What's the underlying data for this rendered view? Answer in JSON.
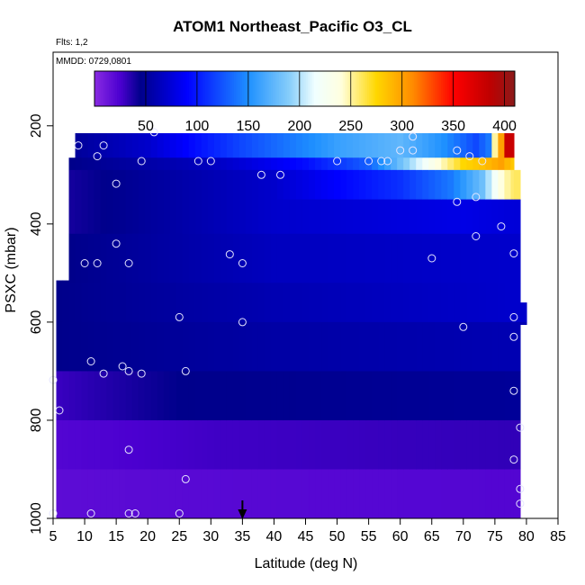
{
  "title": "ATOM1 Northeast_Pacific O3_CL",
  "flights_label": "Flts: 1,2",
  "date_label": "MMDD: 0729,0801",
  "chart_data": {
    "type": "heatmap",
    "xlabel": "Latitude (deg N)",
    "ylabel": "PSXC (mbar)",
    "xlim": [
      5,
      85
    ],
    "ylim": [
      1000,
      50
    ],
    "x_ticks": [
      5,
      10,
      15,
      20,
      25,
      30,
      35,
      40,
      45,
      50,
      55,
      60,
      65,
      70,
      75,
      80,
      85
    ],
    "y_ticks": [
      200,
      400,
      600,
      800,
      1000
    ],
    "colorbar": {
      "range": [
        0,
        410
      ],
      "ticks": [
        50,
        100,
        150,
        200,
        250,
        300,
        350,
        400
      ],
      "stops": [
        {
          "v": 0,
          "c": "#8a2be2"
        },
        {
          "v": 25,
          "c": "#4b00d0"
        },
        {
          "v": 45,
          "c": "#00008b"
        },
        {
          "v": 90,
          "c": "#0000ff"
        },
        {
          "v": 150,
          "c": "#1e90ff"
        },
        {
          "v": 190,
          "c": "#87cefa"
        },
        {
          "v": 215,
          "c": "#f0ffff"
        },
        {
          "v": 240,
          "c": "#ffffe0"
        },
        {
          "v": 275,
          "c": "#ffd700"
        },
        {
          "v": 310,
          "c": "#ff8c00"
        },
        {
          "v": 350,
          "c": "#ff0000"
        },
        {
          "v": 385,
          "c": "#c00000"
        },
        {
          "v": 410,
          "c": "#8b1a1a"
        }
      ]
    },
    "columns": [
      {
        "lat_start": 5.5,
        "lat_end": 7.5,
        "p_top": 515,
        "p_bot": 1000
      },
      {
        "lat_start": 7.5,
        "lat_end": 8.5,
        "p_top": 265,
        "p_bot": 1000
      },
      {
        "lat_start": 8.5,
        "lat_end": 78,
        "p_top": 215,
        "p_bot": 1000
      },
      {
        "lat_start": 78,
        "lat_end": 79,
        "p_top": 290,
        "p_bot": 1000
      },
      {
        "lat_start": 79,
        "lat_end": 80,
        "p_top": 560,
        "p_bot": 605
      }
    ],
    "layers": [
      {
        "p_top": 215,
        "p_bot": 265,
        "values_by_lat": [
          [
            8,
            50
          ],
          [
            20,
            70
          ],
          [
            35,
            120
          ],
          [
            50,
            160
          ],
          [
            60,
            175
          ],
          [
            67,
            150
          ],
          [
            72,
            120
          ],
          [
            74,
            140
          ],
          [
            75,
            250
          ],
          [
            76,
            300
          ],
          [
            77,
            380
          ]
        ]
      },
      {
        "p_top": 265,
        "p_bot": 290,
        "values_by_lat": [
          [
            8,
            45
          ],
          [
            30,
            65
          ],
          [
            45,
            95
          ],
          [
            55,
            130
          ],
          [
            62,
            200
          ],
          [
            66,
            240
          ],
          [
            70,
            275
          ],
          [
            73,
            285
          ],
          [
            76,
            300
          ],
          [
            78,
            280
          ]
        ]
      },
      {
        "p_top": 290,
        "p_bot": 350,
        "values_by_lat": [
          [
            8,
            40
          ],
          [
            40,
            70
          ],
          [
            60,
            110
          ],
          [
            68,
            140
          ],
          [
            73,
            180
          ],
          [
            76,
            240
          ],
          [
            78,
            260
          ]
        ]
      },
      {
        "p_top": 350,
        "p_bot": 420,
        "values_by_lat": [
          [
            8,
            40
          ],
          [
            40,
            70
          ],
          [
            70,
            80
          ],
          [
            78,
            75
          ]
        ]
      },
      {
        "p_top": 420,
        "p_bot": 520,
        "values_by_lat": [
          [
            8,
            45
          ],
          [
            40,
            65
          ],
          [
            78,
            70
          ]
        ]
      },
      {
        "p_top": 520,
        "p_bot": 600,
        "values_by_lat": [
          [
            6,
            45
          ],
          [
            40,
            60
          ],
          [
            78,
            70
          ]
        ]
      },
      {
        "p_top": 600,
        "p_bot": 700,
        "values_by_lat": [
          [
            6,
            45
          ],
          [
            40,
            55
          ],
          [
            78,
            60
          ]
        ]
      },
      {
        "p_top": 700,
        "p_bot": 800,
        "values_by_lat": [
          [
            6,
            30
          ],
          [
            25,
            45
          ],
          [
            78,
            50
          ]
        ]
      },
      {
        "p_top": 800,
        "p_bot": 900,
        "values_by_lat": [
          [
            6,
            22
          ],
          [
            30,
            28
          ],
          [
            78,
            32
          ]
        ]
      },
      {
        "p_top": 900,
        "p_bot": 1000,
        "values_by_lat": [
          [
            6,
            18
          ],
          [
            30,
            20
          ],
          [
            78,
            22
          ]
        ]
      }
    ],
    "points": [
      [
        9,
        240
      ],
      [
        12,
        262
      ],
      [
        13,
        240
      ],
      [
        15,
        318
      ],
      [
        19,
        272
      ],
      [
        21,
        213
      ],
      [
        28,
        272
      ],
      [
        30,
        272
      ],
      [
        38,
        300
      ],
      [
        41,
        300
      ],
      [
        50,
        272
      ],
      [
        55,
        272
      ],
      [
        57,
        272
      ],
      [
        58,
        272
      ],
      [
        60,
        250
      ],
      [
        62,
        222
      ],
      [
        62,
        250
      ],
      [
        69,
        250
      ],
      [
        71,
        262
      ],
      [
        73,
        272
      ],
      [
        69,
        355
      ],
      [
        72,
        345
      ],
      [
        76,
        405
      ],
      [
        78,
        460
      ],
      [
        15,
        440
      ],
      [
        17,
        480
      ],
      [
        12,
        480
      ],
      [
        10,
        480
      ],
      [
        33,
        462
      ],
      [
        35,
        480
      ],
      [
        65,
        470
      ],
      [
        72,
        425
      ],
      [
        25,
        590
      ],
      [
        35,
        600
      ],
      [
        70,
        610
      ],
      [
        78,
        590
      ],
      [
        78,
        630
      ],
      [
        11,
        680
      ],
      [
        13,
        705
      ],
      [
        16,
        690
      ],
      [
        17,
        700
      ],
      [
        19,
        705
      ],
      [
        26,
        700
      ],
      [
        5,
        718
      ],
      [
        6,
        780
      ],
      [
        78,
        740
      ],
      [
        79,
        815
      ],
      [
        17,
        860
      ],
      [
        26,
        920
      ],
      [
        78,
        880
      ],
      [
        79,
        940
      ],
      [
        79,
        970
      ],
      [
        5,
        990
      ],
      [
        11,
        990
      ],
      [
        17,
        990
      ],
      [
        18,
        990
      ],
      [
        25,
        990
      ]
    ],
    "marker": {
      "lat": 35,
      "label": "arrow"
    }
  }
}
